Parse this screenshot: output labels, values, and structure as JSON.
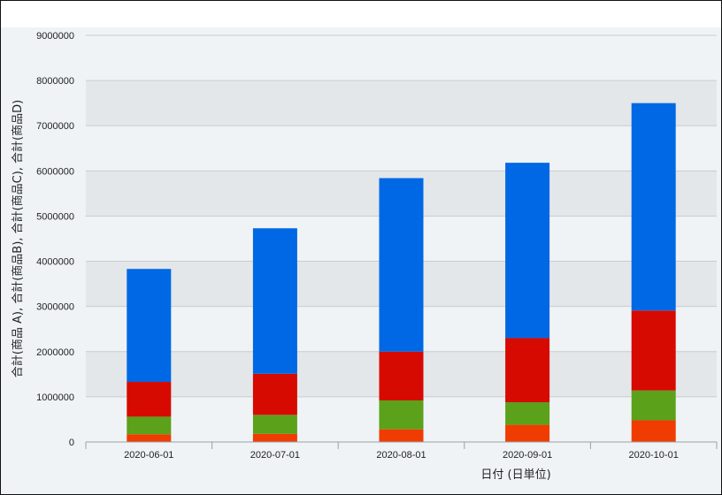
{
  "chart_data": {
    "type": "bar",
    "stacked": true,
    "categories": [
      "2020-06-01",
      "2020-07-01",
      "2020-08-01",
      "2020-09-01",
      "2020-10-01"
    ],
    "series": [
      {
        "name": "合計(商品 A)",
        "color": "#f03c00",
        "values": [
          170000,
          180000,
          280000,
          380000,
          480000
        ]
      },
      {
        "name": "合計(商品B)",
        "color": "#5ba11a",
        "values": [
          390000,
          420000,
          640000,
          500000,
          660000
        ]
      },
      {
        "name": "合計(商品C)",
        "color": "#d60a00",
        "values": [
          770000,
          910000,
          1080000,
          1420000,
          1770000
        ]
      },
      {
        "name": "合計(商品D)",
        "color": "#0068e4",
        "values": [
          2500000,
          3220000,
          3840000,
          3880000,
          4590000
        ]
      }
    ],
    "xlabel": "日付 (日単位)",
    "ylabel": "合計(商品 A), 合計(商品B), 合計(商品C), 合計(商品D)",
    "ylim": [
      0,
      9000000
    ],
    "yticks": [
      0,
      1000000,
      2000000,
      3000000,
      4000000,
      5000000,
      6000000,
      7000000,
      8000000,
      9000000
    ],
    "grid": true,
    "legend": "none"
  }
}
